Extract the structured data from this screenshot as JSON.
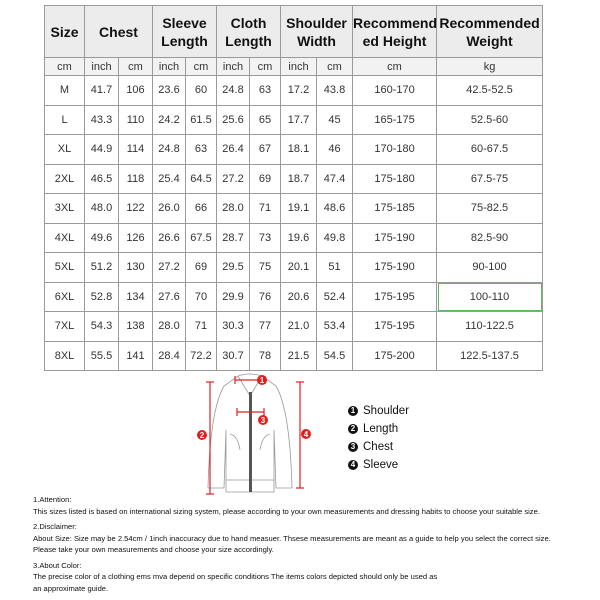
{
  "table": {
    "headers": [
      "Size",
      "Chest",
      "Sleeve Length",
      "Cloth Length",
      "Shoulder Width",
      "Recommended Height",
      "Recommended Weight"
    ],
    "header_lines": [
      [
        "Size"
      ],
      [
        "Chest"
      ],
      [
        "Sleeve",
        "Length"
      ],
      [
        "Cloth",
        "Length"
      ],
      [
        "Shoulder",
        "Width"
      ],
      [
        "Recommend",
        "ed Height"
      ],
      [
        "Recommended",
        "Weight"
      ]
    ],
    "units": [
      "cm",
      "inch",
      "cm",
      "inch",
      "cm",
      "inch",
      "cm",
      "inch",
      "cm",
      "cm",
      "kg"
    ],
    "rows": [
      [
        "M",
        "41.7",
        "106",
        "23.6",
        "60",
        "24.8",
        "63",
        "17.2",
        "43.8",
        "160-170",
        "42.5-52.5"
      ],
      [
        "L",
        "43.3",
        "110",
        "24.2",
        "61.5",
        "25.6",
        "65",
        "17.7",
        "45",
        "165-175",
        "52.5-60"
      ],
      [
        "XL",
        "44.9",
        "114",
        "24.8",
        "63",
        "26.4",
        "67",
        "18.1",
        "46",
        "170-180",
        "60-67.5"
      ],
      [
        "2XL",
        "46.5",
        "118",
        "25.4",
        "64.5",
        "27.2",
        "69",
        "18.7",
        "47.4",
        "175-180",
        "67.5-75"
      ],
      [
        "3XL",
        "48.0",
        "122",
        "26.0",
        "66",
        "28.0",
        "71",
        "19.1",
        "48.6",
        "175-185",
        "75-82.5"
      ],
      [
        "4XL",
        "49.6",
        "126",
        "26.6",
        "67.5",
        "28.7",
        "73",
        "19.6",
        "49.8",
        "175-190",
        "82.5-90"
      ],
      [
        "5XL",
        "51.2",
        "130",
        "27.2",
        "69",
        "29.5",
        "75",
        "20.1",
        "51",
        "175-190",
        "90-100"
      ],
      [
        "6XL",
        "52.8",
        "134",
        "27.6",
        "70",
        "29.9",
        "76",
        "20.6",
        "52.4",
        "175-195",
        "100-110"
      ],
      [
        "7XL",
        "54.3",
        "138",
        "28.0",
        "71",
        "30.3",
        "77",
        "21.0",
        "53.4",
        "175-195",
        "110-122.5"
      ],
      [
        "8XL",
        "55.5",
        "141",
        "28.4",
        "72.2",
        "30.7",
        "78",
        "21.5",
        "54.5",
        "175-200",
        "122.5-137.5"
      ]
    ],
    "highlight_color": "#5cb85c"
  },
  "diagram": {
    "markers": [
      "1",
      "2",
      "3",
      "4"
    ],
    "marker_color": "#e02020"
  },
  "legend": [
    {
      "num": "1",
      "label": "Shoulder"
    },
    {
      "num": "2",
      "label": "Length"
    },
    {
      "num": "3",
      "label": "Chest"
    },
    {
      "num": "4",
      "label": "Sleeve"
    }
  ],
  "notes": [
    {
      "title": "1.Attention:",
      "lines": [
        "This sizes listed is based on international sizing system, please according to your own measurements and dressing habits to choose your suitable size."
      ]
    },
    {
      "title": "2.Disclaimer:",
      "lines": [
        "About Size: Size may be 2.54cm / 1inch inaccuracy due to hand measuer. Thsese measurements are meant as a guide to help you select the correct size.",
        "Please take your own measurements and choose your size accordingly."
      ]
    },
    {
      "title": "3.About Color:",
      "lines": [
        "The precise color of a clothing ems mva depend on specific conditions The items colors depicted should only be used as",
        "an approximate guide."
      ]
    }
  ]
}
